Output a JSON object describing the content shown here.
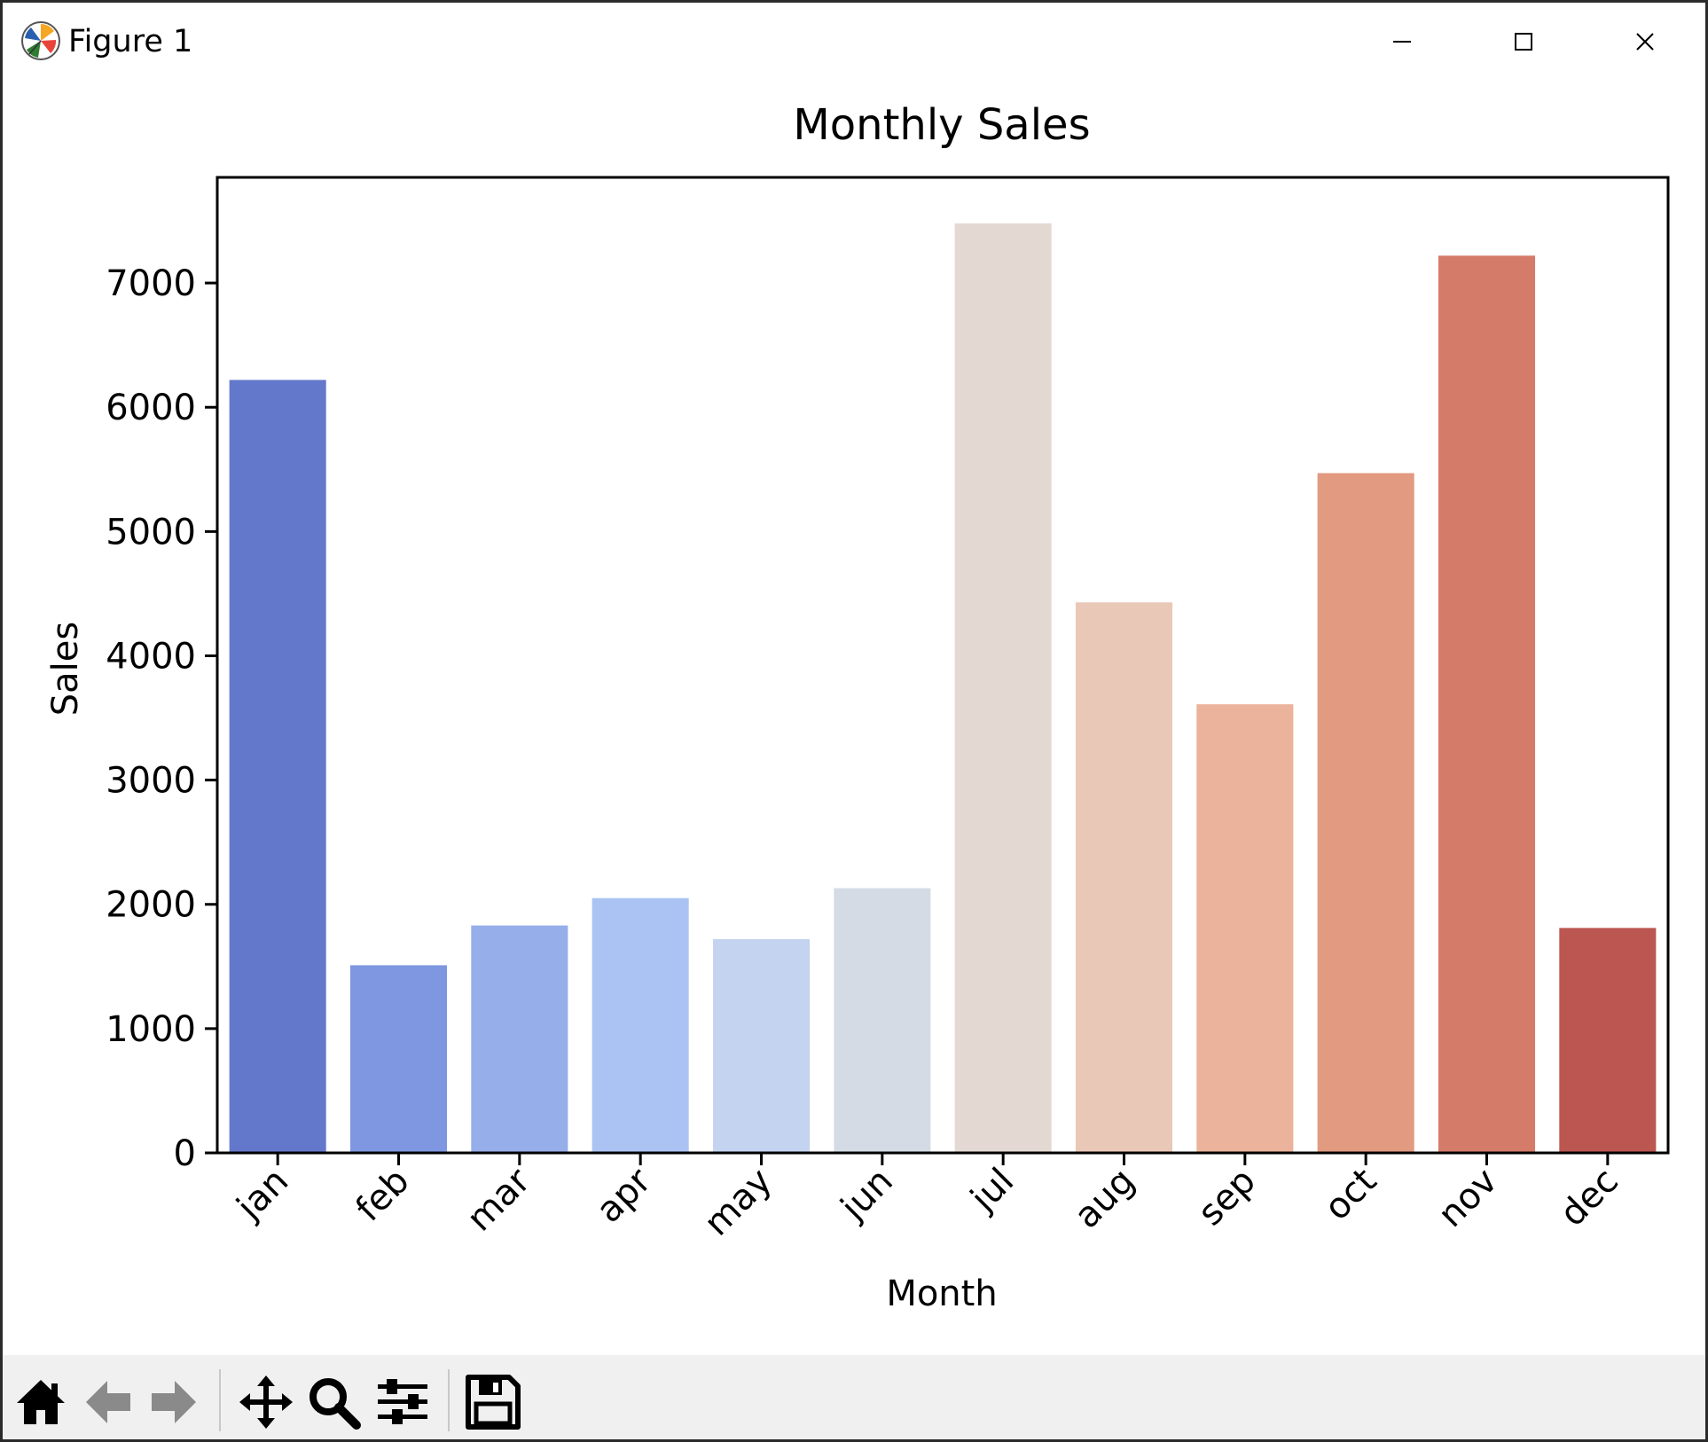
{
  "window": {
    "title": "Figure 1",
    "icon": "matplotlib-logo-icon"
  },
  "toolbar": {
    "items": [
      "home-icon",
      "back-arrow-icon",
      "forward-arrow-icon",
      "pan-icon",
      "zoom-icon",
      "configure-subplots-icon",
      "save-icon"
    ]
  },
  "chart_data": {
    "type": "bar",
    "title": "Monthly Sales",
    "xlabel": "Month",
    "ylabel": "Sales",
    "categories": [
      "jan",
      "feb",
      "mar",
      "apr",
      "may",
      "jun",
      "jul",
      "aug",
      "sep",
      "oct",
      "nov",
      "dec"
    ],
    "values": [
      6220,
      1510,
      1830,
      2050,
      1720,
      2130,
      7480,
      4430,
      3610,
      5470,
      7220,
      1810
    ],
    "colors": [
      "#6478cb",
      "#7f97e0",
      "#96aeea",
      "#aac3f3",
      "#c4d3f0",
      "#d5dbe5",
      "#e4d8d2",
      "#eac8b7",
      "#ebb39b",
      "#e29a80",
      "#d47b69",
      "#bb5650"
    ],
    "ylim": [
      0,
      7850
    ],
    "yticks": [
      0,
      1000,
      2000,
      3000,
      4000,
      5000,
      6000,
      7000
    ],
    "grid": false,
    "legend": "none"
  }
}
